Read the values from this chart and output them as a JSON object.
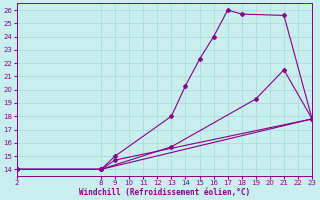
{
  "xlabel": "Windchill (Refroidissement éolien,°C)",
  "bg_color": "#c8eeee",
  "grid_color": "#a8d8d8",
  "line_color": "#880088",
  "xlim": [
    2,
    23
  ],
  "ylim": [
    13.5,
    26.5
  ],
  "xticks": [
    2,
    8,
    9,
    10,
    11,
    12,
    13,
    14,
    15,
    16,
    17,
    18,
    19,
    20,
    21,
    22,
    23
  ],
  "yticks": [
    14,
    15,
    16,
    17,
    18,
    19,
    20,
    21,
    22,
    23,
    24,
    25,
    26
  ],
  "curve1_x": [
    2,
    8,
    9,
    13,
    14,
    15,
    16,
    17,
    18,
    21,
    23
  ],
  "curve1_y": [
    14,
    14,
    15,
    18,
    20.3,
    22.3,
    24.0,
    26.0,
    25.7,
    25.6,
    17.8
  ],
  "curve2_x": [
    2,
    8,
    13,
    19,
    21,
    23
  ],
  "curve2_y": [
    14,
    14,
    15.7,
    19.3,
    21.5,
    17.8
  ],
  "curve3_x": [
    2,
    8,
    23
  ],
  "curve3_y": [
    14,
    14,
    17.8
  ],
  "curve4_x": [
    2,
    8,
    9,
    23
  ],
  "curve4_y": [
    14,
    14,
    14.7,
    17.8
  ]
}
